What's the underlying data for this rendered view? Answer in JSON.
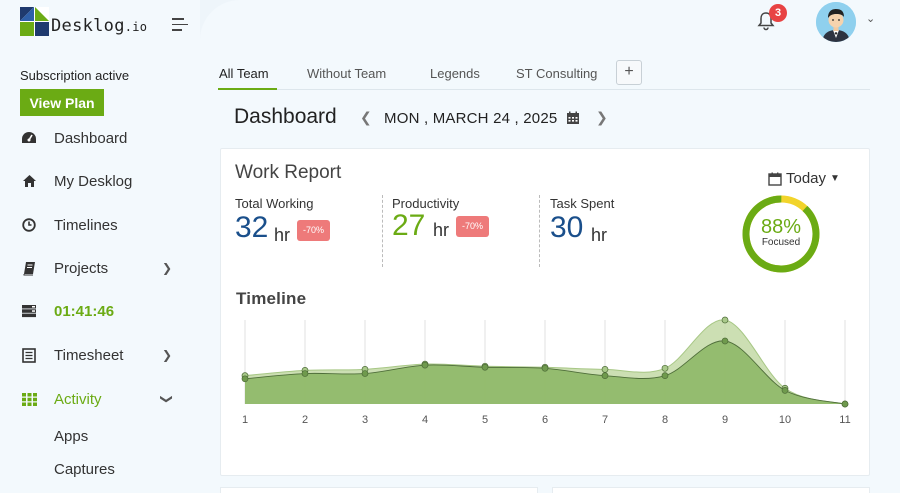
{
  "brand": {
    "name": "Desklog",
    "suffix": ".io"
  },
  "subscription": {
    "status": "Subscription active",
    "view_plan": "View Plan"
  },
  "sidebar": {
    "items": [
      {
        "label": "Dashboard",
        "icon": "dashboard-icon"
      },
      {
        "label": "My Desklog",
        "icon": "home-icon"
      },
      {
        "label": "Timelines",
        "icon": "clock-icon"
      },
      {
        "label": "Projects",
        "icon": "book-icon",
        "has_children": true
      },
      {
        "label": "01:41:46",
        "icon": "timer-icon"
      },
      {
        "label": "Timesheet",
        "icon": "timesheet-icon",
        "has_children": true
      },
      {
        "label": "Activity",
        "icon": "grid-icon",
        "has_children": true,
        "expanded": true
      }
    ],
    "sub_items": [
      "Apps",
      "Captures"
    ]
  },
  "header": {
    "notification_count": "3"
  },
  "tabs": [
    {
      "label": "All Team",
      "active": true
    },
    {
      "label": "Without Team"
    },
    {
      "label": "Legends"
    },
    {
      "label": "ST Consulting"
    }
  ],
  "tab_add": "+",
  "dashboard": {
    "title": "Dashboard",
    "date": "MON , MARCH 24 , 2025"
  },
  "work_report": {
    "title": "Work Report",
    "period": "Today",
    "stats": [
      {
        "label": "Total Working",
        "value": "32",
        "unit": "hr",
        "change": "-70%",
        "color": "#1a4f8b"
      },
      {
        "label": "Productivity",
        "value": "27",
        "unit": "hr",
        "change": "-70%",
        "color": "#6bab14"
      },
      {
        "label": "Task Spent",
        "value": "30",
        "unit": "hr",
        "color": "#1a4f8b"
      }
    ],
    "focus": {
      "percent": "88%",
      "label": "Focused",
      "value": 0.88
    }
  },
  "timeline": {
    "title": "Timeline"
  },
  "chart_data": {
    "type": "area",
    "x": [
      1,
      2,
      3,
      4,
      5,
      6,
      7,
      8,
      9,
      10,
      11
    ],
    "series": [
      {
        "values": [
          27,
          32,
          33,
          38,
          36,
          35,
          33,
          34,
          80,
          15,
          0
        ],
        "color": "#c3d9a6"
      },
      {
        "values": [
          24,
          29,
          29,
          37,
          35,
          34,
          27,
          27,
          60,
          13,
          0
        ],
        "color": "#86b35e"
      }
    ],
    "ylim": [
      0,
      80
    ],
    "grid": true
  },
  "colors": {
    "accent": "#6bab14",
    "brand_blue": "#1a4f8b",
    "badge_red": "#e84343"
  }
}
